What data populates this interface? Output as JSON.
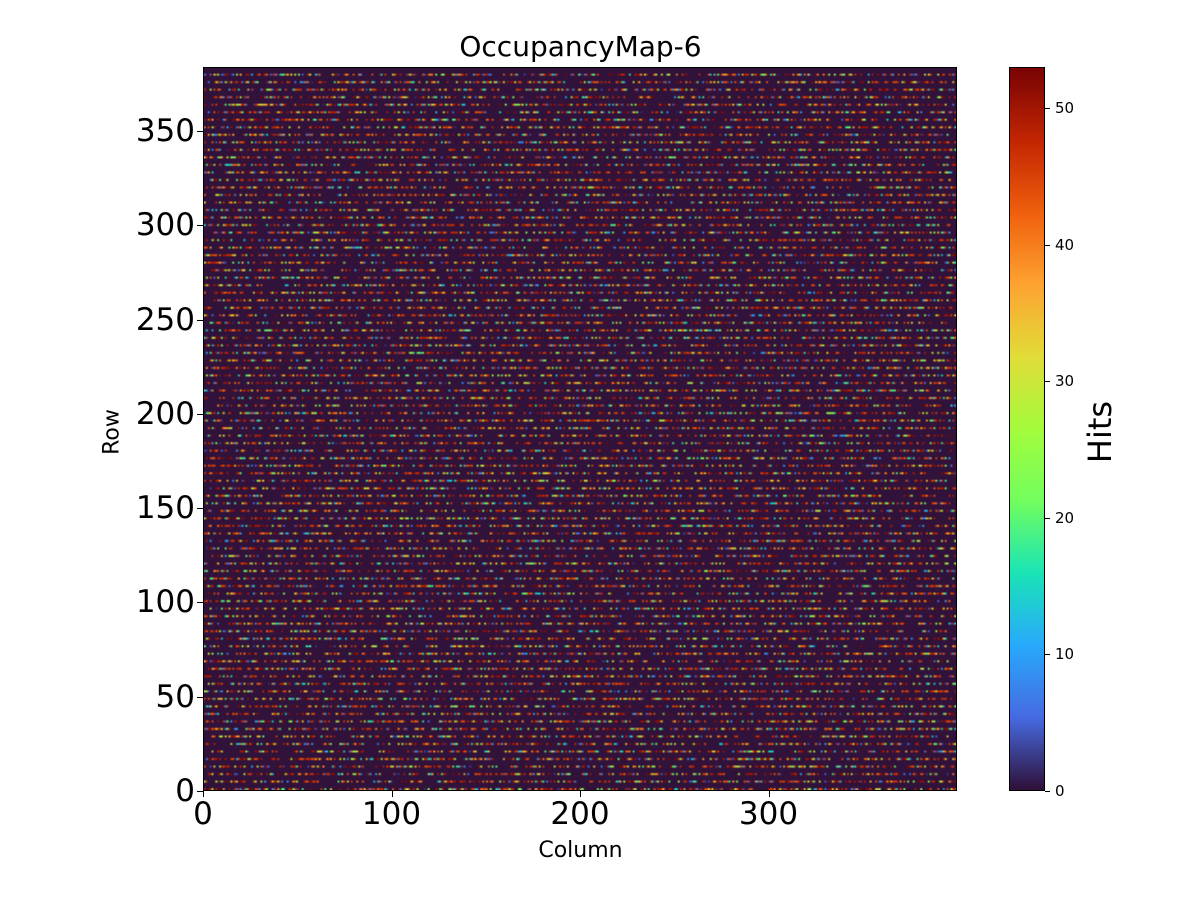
{
  "chart_data": {
    "type": "heatmap",
    "title": "OccupancyMap-6",
    "xlabel": "Column",
    "ylabel": "Row",
    "xlim": [
      0,
      400
    ],
    "ylim": [
      0,
      384
    ],
    "n_columns": 400,
    "n_rows": 384,
    "xticks": [
      "0",
      "100",
      "200",
      "300"
    ],
    "yticks": [
      "0",
      "50",
      "100",
      "150",
      "200",
      "250",
      "300",
      "350"
    ],
    "colormap": "turbo",
    "colorbar": {
      "label": "Hits",
      "range": [
        0,
        53
      ],
      "ticks": [
        "0",
        "10",
        "20",
        "30",
        "40",
        "50"
      ]
    },
    "pattern": {
      "description": "Sparse hits on every 4th row; each hit cell value between 1 and 53, background 0",
      "active_row_period": 4,
      "hit_fraction_in_active_rows": 0.55,
      "value_range": [
        1,
        53
      ]
    }
  }
}
